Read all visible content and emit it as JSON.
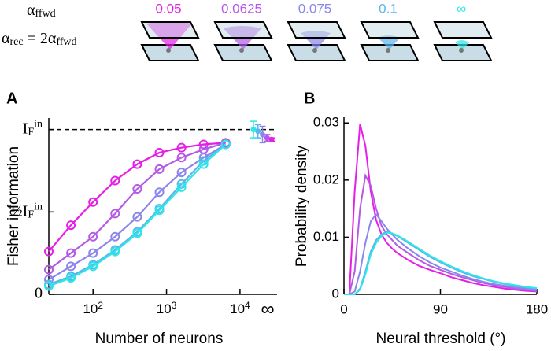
{
  "header": {
    "alpha_ffwd": [
      {
        "text": "α"
      },
      {
        "text": "ffwd",
        "pos": "sub"
      }
    ],
    "alpha_rec": [
      {
        "text": "α"
      },
      {
        "text": "rec",
        "pos": "sub"
      },
      {
        "text": " = 2α"
      },
      {
        "text": "ffwd",
        "pos": "sub"
      }
    ]
  },
  "chart_data": [
    {
      "type": "line",
      "panel": "A",
      "xlabel": "Number of neurons",
      "ylabel": "Fisher information",
      "xscale": "log",
      "xlim": [
        25,
        20000
      ],
      "ylim": [
        0,
        1.07
      ],
      "xticks": [
        {
          "value": 100,
          "label": [
            {
              "text": "10"
            },
            {
              "text": "2",
              "pos": "sup"
            }
          ]
        },
        {
          "value": 1000,
          "label": [
            {
              "text": "10"
            },
            {
              "text": "3",
              "pos": "sup"
            }
          ]
        },
        {
          "value": 10000,
          "label": [
            {
              "text": "10"
            },
            {
              "text": "4",
              "pos": "sup"
            }
          ]
        }
      ],
      "x_inf_label": "∞",
      "yticks": [
        0,
        {
          "value": 0.5,
          "label": [
            {
              "text": "½"
            },
            {
              "text": "I"
            },
            {
              "text": "F",
              "pos": "sub"
            },
            {
              "text": "in",
              "pos": "sup"
            }
          ]
        },
        {
          "value": 1,
          "label": [
            {
              "text": "I"
            },
            {
              "text": "F",
              "pos": "sub"
            },
            {
              "text": "in",
              "pos": "sup"
            }
          ]
        }
      ],
      "hline": 1,
      "x": [
        25,
        50,
        100,
        200,
        400,
        800,
        1600,
        3200,
        6400
      ],
      "series": [
        {
          "name": "0.05",
          "color": "#e61ee6",
          "values": [
            0.26,
            0.42,
            0.56,
            0.69,
            0.79,
            0.86,
            0.89,
            0.91,
            0.92
          ],
          "inf_value": 0.94,
          "inf_error": 0.01
        },
        {
          "name": "0.0625",
          "color": "#b45ae6",
          "values": [
            0.15,
            0.25,
            0.35,
            0.49,
            0.64,
            0.76,
            0.83,
            0.88,
            0.92
          ],
          "inf_value": 0.95,
          "inf_error": 0.02
        },
        {
          "name": "0.075",
          "color": "#8a86ec",
          "values": [
            0.09,
            0.17,
            0.25,
            0.35,
            0.47,
            0.62,
            0.74,
            0.83,
            0.91
          ],
          "inf_value": 0.97,
          "inf_error": 0.05
        },
        {
          "name": "0.1",
          "color": "#5ab4ee",
          "values": [
            0.06,
            0.11,
            0.18,
            0.27,
            0.38,
            0.52,
            0.67,
            0.81,
            0.91
          ],
          "inf_value": 0.99,
          "inf_error": 0.04
        },
        {
          "name": "∞",
          "color": "#2ee6e6",
          "values": [
            0.05,
            0.1,
            0.17,
            0.26,
            0.37,
            0.51,
            0.65,
            0.79,
            0.91
          ],
          "inf_value": 1.0,
          "inf_error": 0.05
        }
      ]
    },
    {
      "type": "line",
      "panel": "B",
      "xlabel": "Neural threshold (°)",
      "ylabel": "Probability density",
      "xlim": [
        0,
        180
      ],
      "ylim": [
        0,
        0.031
      ],
      "xticks": [
        0,
        90,
        180
      ],
      "yticks": [
        0,
        0.01,
        0.02,
        0.03
      ],
      "x": [
        0,
        5,
        10,
        15,
        20,
        25,
        30,
        35,
        40,
        45,
        50,
        60,
        70,
        80,
        90,
        100,
        110,
        120,
        130,
        140,
        150,
        160,
        170,
        180
      ],
      "series": [
        {
          "color": "#e61ee6",
          "values": [
            0,
            0,
            0.018,
            0.0298,
            0.026,
            0.018,
            0.013,
            0.0105,
            0.009,
            0.008,
            0.0072,
            0.006,
            0.005,
            0.0043,
            0.0037,
            0.003,
            0.0025,
            0.002,
            0.0016,
            0.0013,
            0.001,
            0.0008,
            0.0006,
            0.0005
          ]
        },
        {
          "color": "#b45ae6",
          "values": [
            0,
            0,
            0.004,
            0.015,
            0.0208,
            0.019,
            0.015,
            0.012,
            0.0105,
            0.0095,
            0.0085,
            0.0072,
            0.006,
            0.005,
            0.0043,
            0.0036,
            0.003,
            0.0025,
            0.002,
            0.0016,
            0.0013,
            0.001,
            0.0008,
            0.0006
          ]
        },
        {
          "color": "#8a86ec",
          "values": [
            0,
            0,
            0.0005,
            0.004,
            0.009,
            0.0128,
            0.014,
            0.0128,
            0.0115,
            0.0105,
            0.0095,
            0.008,
            0.0067,
            0.0056,
            0.0047,
            0.004,
            0.0033,
            0.0027,
            0.0022,
            0.0018,
            0.0015,
            0.0012,
            0.001,
            0.0008
          ]
        },
        {
          "color": "#5ab4ee",
          "values": [
            0,
            0,
            0,
            0.001,
            0.004,
            0.0075,
            0.0095,
            0.0105,
            0.011,
            0.0106,
            0.0102,
            0.009,
            0.0078,
            0.0066,
            0.0056,
            0.0047,
            0.0039,
            0.0032,
            0.0027,
            0.0022,
            0.0018,
            0.0015,
            0.0012,
            0.001
          ]
        },
        {
          "color": "#2ee6e6",
          "values": [
            0,
            0,
            0,
            0.0008,
            0.0035,
            0.007,
            0.009,
            0.0102,
            0.0108,
            0.0107,
            0.0103,
            0.0092,
            0.008,
            0.0068,
            0.0058,
            0.0049,
            0.0041,
            0.0034,
            0.0028,
            0.0023,
            0.0019,
            0.0016,
            0.0013,
            0.0011
          ]
        }
      ]
    }
  ]
}
